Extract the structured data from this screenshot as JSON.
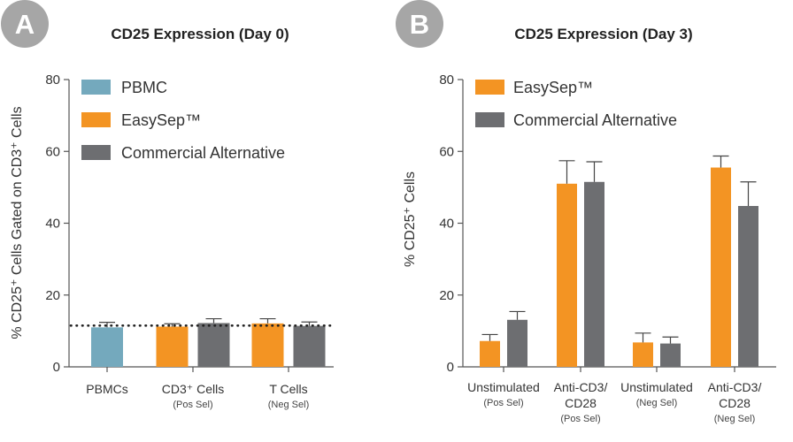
{
  "badge_color": "#a6a6a6",
  "axis_color": "#555555",
  "chart_data": [
    {
      "type": "bar",
      "badge": "A",
      "title": "CD25 Expression (Day 0)",
      "ylabel": "% CD25⁺ Cells Gated on CD3⁺ Cells",
      "xlabel": "",
      "ylim": [
        0,
        80
      ],
      "yticks": [
        0,
        20,
        40,
        60,
        80
      ],
      "grid": false,
      "legend_position": "top-left",
      "reference_line": {
        "value": 11.5,
        "style": "dotted"
      },
      "categories": [
        {
          "lines": [
            "PBMCs"
          ],
          "sub": ""
        },
        {
          "lines": [
            "CD3⁺ Cells"
          ],
          "sub": "(Pos Sel)"
        },
        {
          "lines": [
            "T Cells"
          ],
          "sub": "(Neg Sel)"
        }
      ],
      "series": [
        {
          "name": "PBMC",
          "color": "#74a9bd"
        },
        {
          "name": "EasySep™",
          "color": "#f39423"
        },
        {
          "name": "Commercial Alternative",
          "color": "#6d6e71"
        }
      ],
      "groups": [
        {
          "bars": [
            {
              "series": 0,
              "value": 11,
              "error": 1.4
            }
          ]
        },
        {
          "bars": [
            {
              "series": 1,
              "value": 11.2,
              "error": 0.8
            },
            {
              "series": 2,
              "value": 12.2,
              "error": 1.2
            }
          ]
        },
        {
          "bars": [
            {
              "series": 1,
              "value": 12.1,
              "error": 1.3
            },
            {
              "series": 2,
              "value": 11.4,
              "error": 1.1
            }
          ]
        }
      ]
    },
    {
      "type": "bar",
      "badge": "B",
      "title": "CD25 Expression (Day 3)",
      "ylabel": "% CD25⁺ Cells",
      "xlabel": "",
      "ylim": [
        0,
        80
      ],
      "yticks": [
        0,
        20,
        40,
        60,
        80
      ],
      "grid": false,
      "legend_position": "top-left",
      "categories": [
        {
          "lines": [
            "Unstimulated"
          ],
          "sub": "(Pos Sel)"
        },
        {
          "lines": [
            "Anti-CD3/",
            "CD28"
          ],
          "sub": "(Pos Sel)"
        },
        {
          "lines": [
            "Unstimulated"
          ],
          "sub": "(Neg Sel)"
        },
        {
          "lines": [
            "Anti-CD3/",
            "CD28"
          ],
          "sub": "(Neg Sel)"
        }
      ],
      "series": [
        {
          "name": "EasySep™",
          "color": "#f39423"
        },
        {
          "name": "Commercial Alternative",
          "color": "#6d6e71"
        }
      ],
      "groups": [
        {
          "bars": [
            {
              "series": 0,
              "value": 7.2,
              "error": 1.8
            },
            {
              "series": 1,
              "value": 13.1,
              "error": 2.3
            }
          ]
        },
        {
          "bars": [
            {
              "series": 0,
              "value": 51,
              "error": 6.4
            },
            {
              "series": 1,
              "value": 51.5,
              "error": 5.6
            }
          ]
        },
        {
          "bars": [
            {
              "series": 0,
              "value": 6.8,
              "error": 2.6
            },
            {
              "series": 1,
              "value": 6.5,
              "error": 1.8
            }
          ]
        },
        {
          "bars": [
            {
              "series": 0,
              "value": 55.5,
              "error": 3.2
            },
            {
              "series": 1,
              "value": 44.8,
              "error": 6.7
            }
          ]
        }
      ]
    }
  ]
}
